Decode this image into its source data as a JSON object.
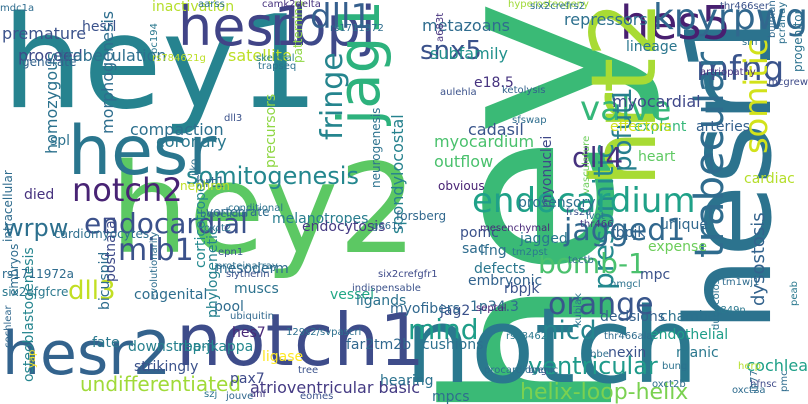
{
  "words": [
    {
      "text": "hey1",
      "color": "#26838f"
    },
    {
      "text": "hey2",
      "color": "#5cc863"
    },
    {
      "text": "hey",
      "color": "#3aba76"
    },
    {
      "text": "notch",
      "color": "#2a788e"
    },
    {
      "text": "notch1",
      "color": "#3e4c8a"
    },
    {
      "text": "hesr1",
      "color": "#2c738e"
    },
    {
      "text": "hesr2",
      "color": "#33638d"
    },
    {
      "text": "hesr",
      "color": "#2a768e"
    },
    {
      "text": "hes1",
      "color": "#414487"
    },
    {
      "text": "rbpj",
      "color": "#3e4989"
    },
    {
      "text": "hes5",
      "color": "#481f70"
    },
    {
      "text": "hrt2",
      "color": "#a8db34"
    },
    {
      "text": "jag1",
      "color": "#2db27d"
    },
    {
      "text": "kpyrpwg",
      "color": "#31688e"
    },
    {
      "text": "dll1",
      "color": "#355f8d"
    },
    {
      "text": "snx5",
      "color": "#3b528b"
    },
    {
      "text": "mfng",
      "color": "#3a548c"
    },
    {
      "text": "valve",
      "color": "#35b779"
    },
    {
      "text": "fringe",
      "color": "#25858e"
    },
    {
      "text": "somitic",
      "color": "#d2e21b"
    },
    {
      "text": "presomitic",
      "color": "#23898e"
    },
    {
      "text": "pofut1",
      "color": "#277f8e"
    },
    {
      "text": "trabecular",
      "color": "#2f6c8e"
    },
    {
      "text": "somitogenesis",
      "color": "#24878e"
    },
    {
      "text": "endocardial",
      "color": "#3b518b"
    },
    {
      "text": "endocardium",
      "color": "#1fa188"
    },
    {
      "text": "notch2",
      "color": "#482374"
    },
    {
      "text": "jagged1",
      "color": "#31688e"
    },
    {
      "text": "dll4",
      "color": "#46327e"
    },
    {
      "text": "wrpw",
      "color": "#2d708e"
    },
    {
      "text": "mib1",
      "color": "#3b528b"
    },
    {
      "text": "bomb-1",
      "color": "#4ac16d"
    },
    {
      "text": "orange",
      "color": "#39568c"
    },
    {
      "text": "nicd",
      "color": "#25858e"
    },
    {
      "text": "mind",
      "color": "#1f9e89"
    },
    {
      "text": "dll3",
      "color": "#c2df23"
    },
    {
      "text": "ventricular",
      "color": "#1f9a8a"
    },
    {
      "text": "helix-loop-helix",
      "color": "#7ad151"
    },
    {
      "text": "atrioventricular basic",
      "color": "#443a83"
    },
    {
      "text": "undifferentiated",
      "color": "#a0da39"
    },
    {
      "text": "cochlea",
      "color": "#1fa088"
    },
    {
      "text": "hesrl",
      "color": "#3b528b"
    },
    {
      "text": "premature",
      "color": "#3b528b"
    },
    {
      "text": "inactivation",
      "color": "#b5de2b"
    },
    {
      "text": "repressors",
      "color": "#2d708e"
    },
    {
      "text": "metazoans",
      "color": "#2f6c8e"
    },
    {
      "text": "subfamily",
      "color": "#21918c"
    },
    {
      "text": "proceed",
      "color": "#3e4a89"
    },
    {
      "text": "trabeculation",
      "color": "#2e6f8e"
    },
    {
      "text": "satellite",
      "color": "#bddf26"
    },
    {
      "text": "myocardial",
      "color": "#3f4889"
    },
    {
      "text": "lineage",
      "color": "#2a768e"
    },
    {
      "text": "e18.5",
      "color": "#46337f"
    },
    {
      "text": "explant",
      "color": "#35b779"
    },
    {
      "text": "arteries",
      "color": "#34618d"
    },
    {
      "text": "compaction",
      "color": "#2d708e"
    },
    {
      "text": "cadasil",
      "color": "#39558c"
    },
    {
      "text": "myocardium",
      "color": "#4ac16d"
    },
    {
      "text": "outflow",
      "color": "#4ac16d"
    },
    {
      "text": "effectors",
      "color": "#d2e21b"
    },
    {
      "text": "heart",
      "color": "#5ec962"
    },
    {
      "text": "cardiac",
      "color": "#b5de2b"
    },
    {
      "text": "dysostosis",
      "color": "#33638d"
    },
    {
      "text": "morphogenesis",
      "color": "#2e6e8e"
    },
    {
      "text": "homozygous",
      "color": "#2c728e"
    },
    {
      "text": "spondylocostal",
      "color": "#26828e"
    },
    {
      "text": "precursors",
      "color": "#8fd744"
    },
    {
      "text": "coronary",
      "color": "#2a788e"
    },
    {
      "text": "rbpjk",
      "color": "#32648e"
    },
    {
      "text": "myonuclei",
      "color": "#3f4889"
    },
    {
      "text": "jagged",
      "color": "#2a778e"
    },
    {
      "text": "spl",
      "color": "#2c728e"
    },
    {
      "text": "hrt1",
      "color": "#31688e"
    },
    {
      "text": "melanotropes",
      "color": "#287d8e"
    },
    {
      "text": "endocytosis",
      "color": "#443a83"
    },
    {
      "text": "lfng",
      "color": "#2e6e8e"
    },
    {
      "text": "defects",
      "color": "#2a778e"
    },
    {
      "text": "mpc",
      "color": "#3b528b"
    },
    {
      "text": "expense",
      "color": "#6ccd5a"
    },
    {
      "text": "unique",
      "color": "#31688e"
    },
    {
      "text": "pomc",
      "color": "#3b528b"
    },
    {
      "text": "sac",
      "color": "#2f6c8e"
    },
    {
      "text": "embryonic",
      "color": "#33638d"
    },
    {
      "text": "jag2",
      "color": "#3b518b"
    },
    {
      "text": "1p34.3",
      "color": "#2f6c8e"
    },
    {
      "text": "chamber",
      "color": "#2c728e"
    },
    {
      "text": "endothelial",
      "color": "#1f9e89"
    },
    {
      "text": "corticotrope",
      "color": "#23898e"
    },
    {
      "text": "mesoderm",
      "color": "#2f6c8e"
    },
    {
      "text": "muscs",
      "color": "#2c728e"
    },
    {
      "text": "congenital",
      "color": "#2e6e8e"
    },
    {
      "text": "vessel",
      "color": "#22a785"
    },
    {
      "text": "ligands",
      "color": "#2c728e"
    },
    {
      "text": "rbpjk",
      "color": "#3b528b"
    },
    {
      "text": "myofibers",
      "color": "#31688e"
    },
    {
      "text": "cushions",
      "color": "#2d708e"
    },
    {
      "text": "decisions",
      "color": "#34618d"
    },
    {
      "text": "bicuspid",
      "color": "#2e6e8e"
    },
    {
      "text": "postnatal",
      "color": "#3e4a89"
    },
    {
      "text": "fate",
      "color": "#2a788e"
    },
    {
      "text": "downstream",
      "color": "#27808e"
    },
    {
      "text": "pool",
      "color": "#2f6c8e"
    },
    {
      "text": "rbp-jkappa",
      "color": "#24878e"
    },
    {
      "text": "hes7",
      "color": "#482878"
    },
    {
      "text": "far2tm2b",
      "color": "#31688e"
    },
    {
      "text": "hearing",
      "color": "#2c728e"
    },
    {
      "text": "nexin",
      "color": "#3b528b"
    },
    {
      "text": "pax7",
      "color": "#3e4a89"
    },
    {
      "text": "manic",
      "color": "#2a788e"
    },
    {
      "text": "phylogenetic",
      "color": "#26828e"
    },
    {
      "text": "mpcs",
      "color": "#2e6e8e"
    },
    {
      "text": "osteoblastogenesis",
      "color": "#25858e"
    },
    {
      "text": "ligase",
      "color": "#fde725"
    },
    {
      "text": "strikingly",
      "color": "#3b528b"
    },
    {
      "text": "cardiomyocytes",
      "color": "#2e6e8e"
    },
    {
      "text": "nephron",
      "color": "#bddf26"
    },
    {
      "text": "vertebrate",
      "color": "#2f6c8e"
    },
    {
      "text": "patterning",
      "color": "#8fd744"
    },
    {
      "text": "neurogenesis",
      "color": "#2c728e"
    },
    {
      "text": "forsberg",
      "color": "#31688e"
    },
    {
      "text": "died",
      "color": "#46327e"
    },
    {
      "text": "intracellular",
      "color": "#2f6c8e"
    },
    {
      "text": "embryos",
      "color": "#2f6c8e"
    },
    {
      "text": "generate",
      "color": "#33638d"
    },
    {
      "text": "prosensory",
      "color": "#2d708e"
    },
    {
      "text": "obvious",
      "color": "#482374"
    },
    {
      "text": "progenitor",
      "color": "#2c728e"
    },
    {
      "text": "artriopathy",
      "color": "#46327e"
    },
    {
      "text": "rs784621g",
      "color": "#bddf26"
    },
    {
      "text": "rs1711972a",
      "color": "#2f6c8e"
    },
    {
      "text": "six2efgfcre",
      "color": "#2a788e"
    },
    {
      "text": "mesenchymal",
      "color": "#482878"
    },
    {
      "text": "evolutionarily",
      "color": "#2e6e8e"
    },
    {
      "text": "ubiquitin",
      "color": "#31688e"
    },
    {
      "text": "indispensable",
      "color": "#3b528b"
    },
    {
      "text": "six2crefgfr1",
      "color": "#3e4a89"
    },
    {
      "text": "slytherin",
      "color": "#3b528b"
    },
    {
      "text": "trapseq",
      "color": "#2c728e"
    },
    {
      "text": "tm2pst",
      "color": "#2a788e"
    },
    {
      "text": "hyperosteogeny",
      "color": "#a0da39"
    },
    {
      "text": "six2crefrs2",
      "color": "#2d708e"
    },
    {
      "text": "camk2delta",
      "color": "#46327e"
    },
    {
      "text": "tm1wj1",
      "color": "#2f6c8e"
    },
    {
      "text": "tectb",
      "color": "#2f6c8e"
    },
    {
      "text": "thr466ser",
      "color": "#3b528b"
    },
    {
      "text": "bulman",
      "color": "#31688e"
    },
    {
      "text": "mcgrew",
      "color": "#3e4a89"
    },
    {
      "text": "pcrarray",
      "color": "#2d708e"
    },
    {
      "text": "srn",
      "color": "#2c728e"
    },
    {
      "text": "mdc1a",
      "color": "#2f6c8e"
    },
    {
      "text": "skeletal",
      "color": "#27808e"
    },
    {
      "text": "cochlear",
      "color": "#31688e"
    },
    {
      "text": "ketolysis",
      "color": "#33638d"
    },
    {
      "text": "aulehla",
      "color": "#3b528b"
    },
    {
      "text": "sfswap",
      "color": "#2e6e8e"
    },
    {
      "text": "g661s",
      "color": "#2f6c8e"
    },
    {
      "text": "proteinarray",
      "color": "#2d708e"
    },
    {
      "text": "a683t",
      "color": "#46327e"
    },
    {
      "text": "septal",
      "color": "#482374"
    },
    {
      "text": "vasculature",
      "color": "#6ccd5a"
    },
    {
      "text": "frs2a",
      "color": "#3b528b"
    },
    {
      "text": "thr466",
      "color": "#443a83"
    },
    {
      "text": "conditional",
      "color": "#2c728e"
    },
    {
      "text": "lvot",
      "color": "#2a788e"
    },
    {
      "text": "bbe",
      "color": "#2e6e8e"
    },
    {
      "text": "oxct2",
      "color": "#2c728e"
    },
    {
      "text": "jlko",
      "color": "#2d708e"
    },
    {
      "text": "epn1",
      "color": "#39568c"
    },
    {
      "text": "borrelidin",
      "color": "#2f6c8e"
    },
    {
      "text": "dll3",
      "color": "#3b528b"
    },
    {
      "text": "aarss",
      "color": "#2c728e"
    },
    {
      "text": "bc194",
      "color": "#2a788e"
    },
    {
      "text": "rs1711972",
      "color": "#2e6e8e"
    },
    {
      "text": "hfnsc",
      "color": "#3e4a89"
    },
    {
      "text": "herp",
      "color": "#b5de2b"
    },
    {
      "text": "jh77",
      "color": "#2f6c8e"
    },
    {
      "text": "szj",
      "color": "#2c728e"
    },
    {
      "text": "anf",
      "color": "#443a83"
    },
    {
      "text": "rs784621",
      "color": "#2a788e"
    },
    {
      "text": "bng",
      "color": "#3b528b"
    },
    {
      "text": "thr466ala",
      "color": "#2f6c8e"
    },
    {
      "text": "procardiogenic",
      "color": "#2d708e"
    },
    {
      "text": "jouve",
      "color": "#31688e"
    },
    {
      "text": "oxct2b",
      "color": "#2e6e8e"
    },
    {
      "text": "kubiak",
      "color": "#2c728e"
    },
    {
      "text": "yap",
      "color": "#fde725"
    },
    {
      "text": "pmc",
      "color": "#2f6c8e"
    },
    {
      "text": "eomes",
      "color": "#3b528b"
    },
    {
      "text": "p849n",
      "color": "#2a788e"
    },
    {
      "text": "oxct2a",
      "color": "#2f6c8e"
    },
    {
      "text": "bung",
      "color": "#2c728e"
    },
    {
      "text": "hmgcl",
      "color": "#2c728e"
    },
    {
      "text": "dudecoloss",
      "color": "#2c728e"
    },
    {
      "text": "peab",
      "color": "#2a788e"
    },
    {
      "text": "tree",
      "color": "#3b528b"
    },
    {
      "text": "129s2/svpascrl",
      "color": "#2d708e"
    }
  ]
}
